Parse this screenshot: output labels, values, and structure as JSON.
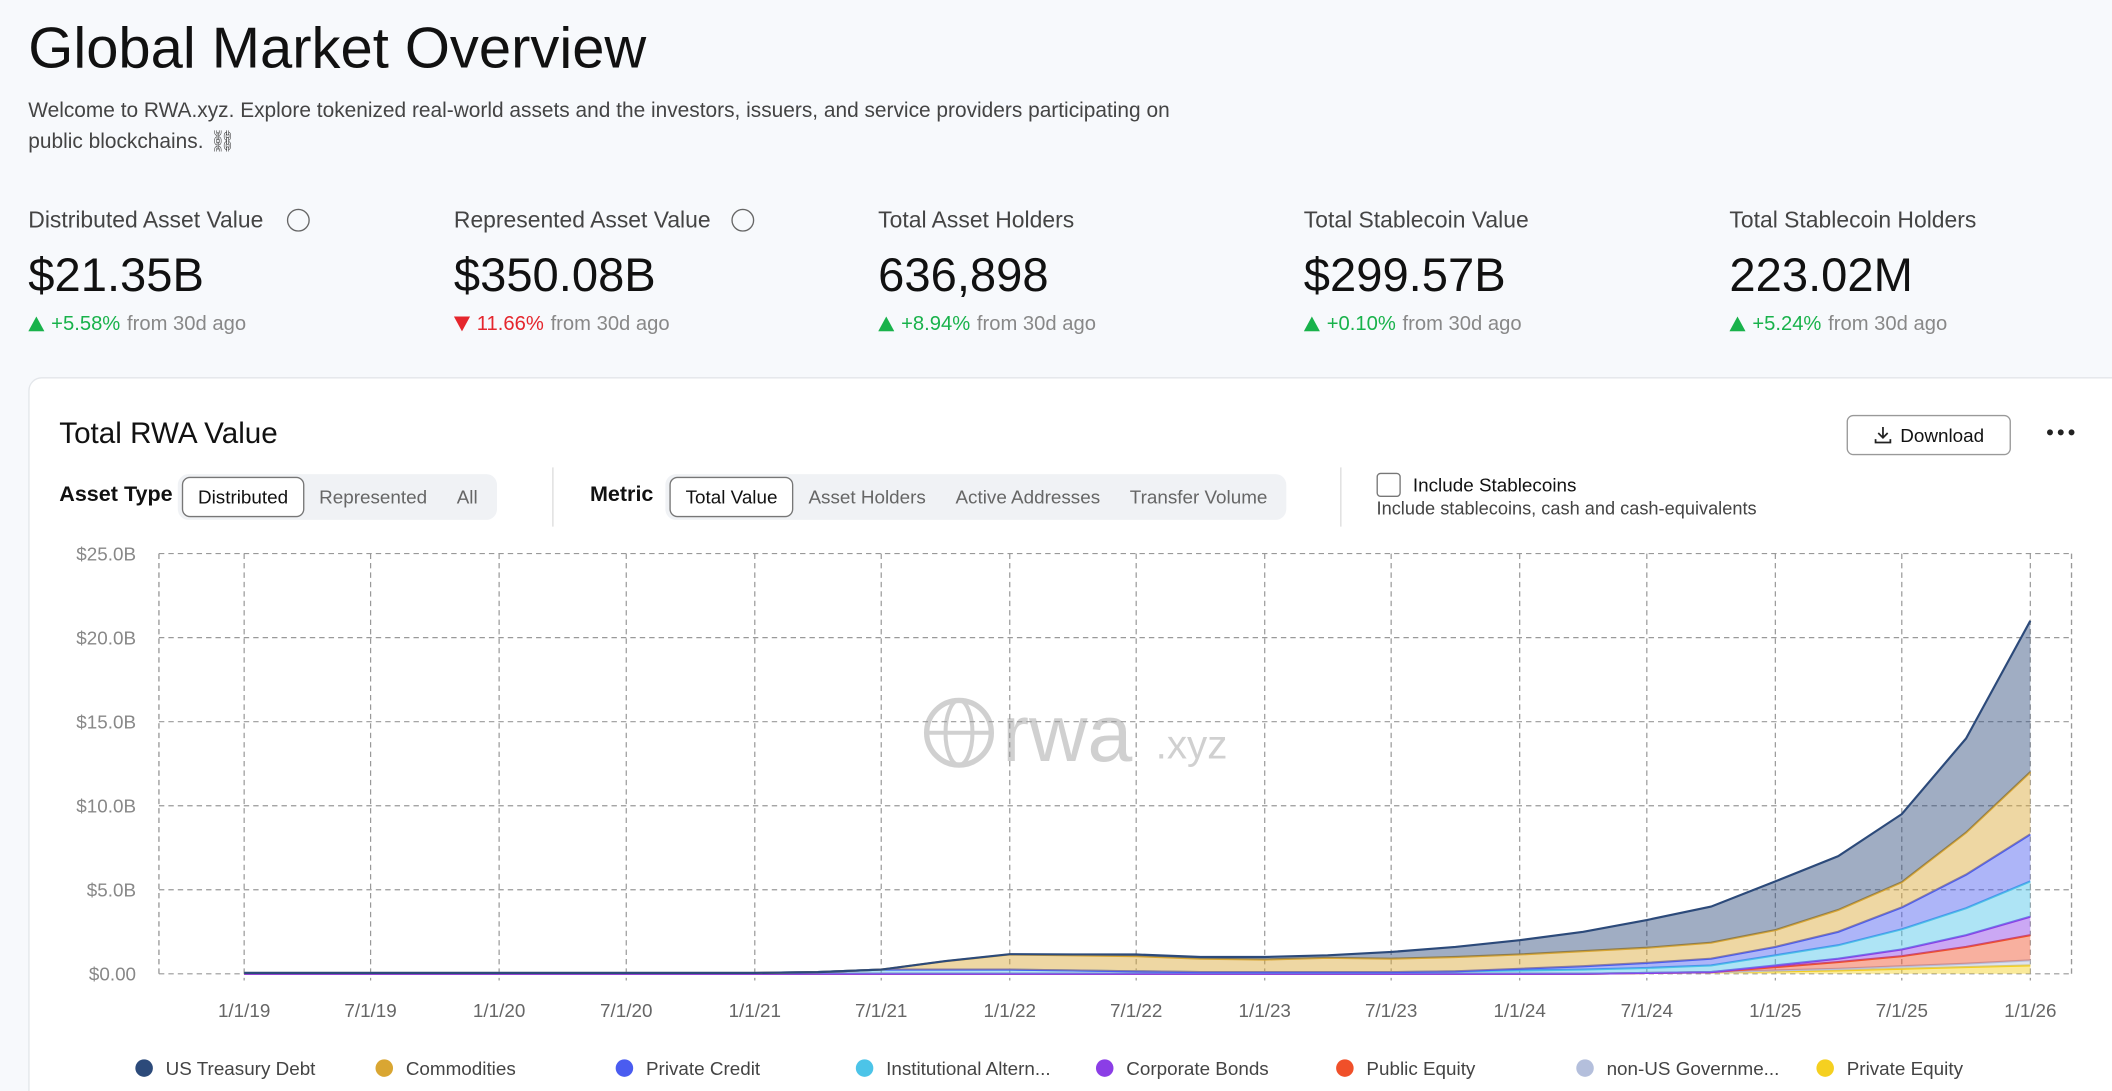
{
  "header": {
    "title": "Global Market Overview",
    "description": "Welcome to RWA.xyz. Explore tokenized real-world assets and the investors, issuers, and service providers participating on public blockchains. ⛓"
  },
  "stats": [
    {
      "label": "Distributed Asset Value",
      "value": "$21.35B",
      "change": "+5.58%",
      "direction": "up",
      "suffix": "from 30d ago"
    },
    {
      "label": "Represented Asset Value",
      "value": "$350.08B",
      "change": "11.66%",
      "direction": "down",
      "suffix": "from 30d ago"
    },
    {
      "label": "Total Asset Holders",
      "value": "636,898",
      "change": "+8.94%",
      "direction": "up",
      "suffix": "from 30d ago"
    },
    {
      "label": "Total Stablecoin Value",
      "value": "$299.57B",
      "change": "+0.10%",
      "direction": "up",
      "suffix": "from 30d ago"
    },
    {
      "label": "Total Stablecoin Holders",
      "value": "223.02M",
      "change": "+5.24%",
      "direction": "up",
      "suffix": "from 30d ago"
    }
  ],
  "card": {
    "title": "Total RWA Value",
    "download": "Download",
    "asset_type": {
      "label": "Asset Type",
      "options": [
        "Distributed",
        "Represented",
        "All"
      ]
    },
    "metric": {
      "label": "Metric",
      "options": [
        "Total Value",
        "Asset Holders",
        "Active Addresses",
        "Transfer Volume"
      ]
    },
    "stablecoins": {
      "label": "Include Stablecoins",
      "hint": "Include stablecoins, cash and cash-equivalents"
    },
    "watermark": {
      "main": "rwa",
      "suffix": ".xyz"
    }
  },
  "chart_data": {
    "type": "stacked_area",
    "x": [
      "1/1/19",
      "4/1/19",
      "7/1/19",
      "10/1/19",
      "1/1/20",
      "4/1/20",
      "7/1/20",
      "10/1/20",
      "1/1/21",
      "4/1/21",
      "7/1/21",
      "10/1/21",
      "1/1/22",
      "4/1/22",
      "7/1/22",
      "10/1/22",
      "1/1/23",
      "4/1/23",
      "7/1/23",
      "10/1/23",
      "1/1/24",
      "4/1/24",
      "7/1/24",
      "10/1/24",
      "1/1/25",
      "4/1/25",
      "7/1/25",
      "10/1/25",
      "1/1/26"
    ],
    "xlim": [
      "9/1/18",
      "3/1/26"
    ],
    "xticks": [
      "1/1/19",
      "7/1/19",
      "1/1/20",
      "7/1/20",
      "1/1/21",
      "7/1/21",
      "1/1/22",
      "7/1/22",
      "1/1/23",
      "7/1/23",
      "1/1/24",
      "7/1/24",
      "1/1/25",
      "7/1/25",
      "1/1/26"
    ],
    "ylim": [
      0,
      25
    ],
    "yticks": [
      {
        "value": 0,
        "label": "$0.00"
      },
      {
        "value": 5,
        "label": "$5.0B"
      },
      {
        "value": 10,
        "label": "$10.0B"
      },
      {
        "value": 15,
        "label": "$15.0B"
      },
      {
        "value": 20,
        "label": "$20.0B"
      },
      {
        "value": 25,
        "label": "$25.0B"
      }
    ],
    "grid": true,
    "series": [
      {
        "name": "US Treasury Debt",
        "color": "#2c4a7a",
        "values": [
          0,
          0,
          0,
          0,
          0,
          0,
          0,
          0,
          0,
          0,
          0,
          0.01,
          0.02,
          0.05,
          0.1,
          0.1,
          0.15,
          0.15,
          0.4,
          0.6,
          0.85,
          1.15,
          1.65,
          2.15,
          2.9,
          3.2,
          4.05,
          5.6,
          9.0
        ]
      },
      {
        "name": "Commodities",
        "color": "#d9a632",
        "values": [
          0,
          0,
          0,
          0,
          0,
          0,
          0,
          0,
          0,
          0,
          0,
          0.5,
          0.9,
          0.9,
          0.9,
          0.8,
          0.75,
          0.85,
          0.8,
          0.85,
          0.85,
          0.9,
          0.9,
          0.95,
          1.0,
          1.3,
          1.5,
          2.5,
          3.7
        ]
      },
      {
        "name": "Private Credit",
        "color": "#4a5cf0",
        "values": [
          0,
          0,
          0,
          0,
          0,
          0,
          0,
          0,
          0,
          0,
          0,
          0,
          0,
          0,
          0,
          0,
          0,
          0,
          0,
          0,
          0.1,
          0.2,
          0.3,
          0.4,
          0.5,
          0.8,
          1.3,
          2.0,
          2.8
        ]
      },
      {
        "name": "Institutional Altern...",
        "color": "#4cc4e8",
        "values": [
          0.05,
          0.05,
          0.05,
          0.05,
          0.05,
          0.05,
          0.05,
          0.05,
          0.05,
          0.1,
          0.25,
          0.25,
          0.25,
          0.2,
          0.15,
          0.1,
          0.1,
          0.1,
          0.1,
          0.15,
          0.2,
          0.25,
          0.3,
          0.4,
          0.6,
          0.8,
          1.2,
          1.6,
          2.1
        ]
      },
      {
        "name": "Corporate Bonds",
        "color": "#8b3ee6",
        "values": [
          0,
          0,
          0,
          0,
          0,
          0,
          0,
          0,
          0,
          0,
          0,
          0,
          0,
          0,
          0,
          0,
          0,
          0,
          0,
          0,
          0,
          0,
          0,
          0,
          0.1,
          0.2,
          0.4,
          0.7,
          1.1
        ]
      },
      {
        "name": "Public Equity",
        "color": "#f0502a",
        "values": [
          0,
          0,
          0,
          0,
          0,
          0,
          0,
          0,
          0,
          0,
          0,
          0,
          0,
          0,
          0,
          0,
          0,
          0,
          0,
          0,
          0,
          0,
          0,
          0,
          0.2,
          0.4,
          0.6,
          1.0,
          1.5
        ]
      },
      {
        "name": "non-US Governme...",
        "color": "#b4bfdc",
        "values": [
          0,
          0,
          0,
          0,
          0,
          0,
          0,
          0,
          0,
          0,
          0,
          0,
          0,
          0,
          0,
          0,
          0,
          0,
          0,
          0,
          0,
          0,
          0,
          0,
          0.05,
          0.1,
          0.15,
          0.2,
          0.3
        ]
      },
      {
        "name": "Private Equity",
        "color": "#f5d020",
        "values": [
          0,
          0,
          0,
          0,
          0,
          0,
          0,
          0,
          0,
          0,
          0,
          0,
          0,
          0,
          0,
          0,
          0,
          0,
          0,
          0,
          0,
          0,
          0.05,
          0.1,
          0.15,
          0.2,
          0.3,
          0.4,
          0.5
        ]
      }
    ]
  }
}
